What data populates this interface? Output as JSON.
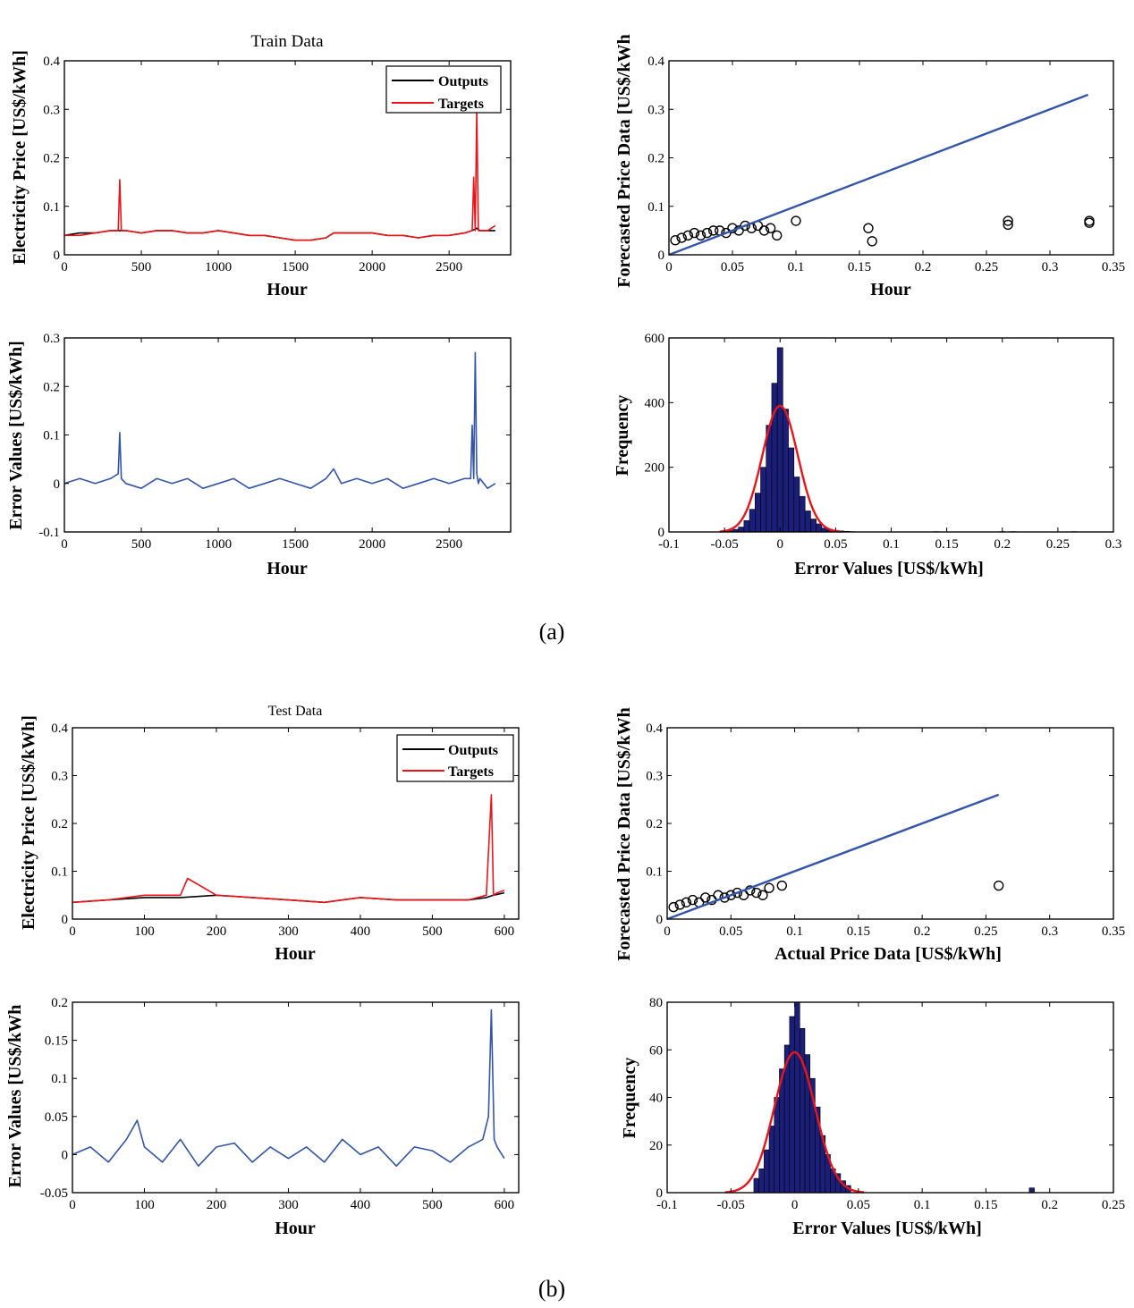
{
  "captions": {
    "a": "(a)",
    "b": "(b)"
  },
  "colors": {
    "outputs": "#000000",
    "targets": "#e8161b",
    "fit_line": "#3355a8",
    "error_line": "#3355a8",
    "hist_bar": "#1c1f7a",
    "normal_curve": "#e8161b"
  },
  "chart_data": [
    {
      "id": "a-train-series",
      "type": "line",
      "title": "Train Data",
      "xlabel": "Hour",
      "ylabel": "Electricity Price [US$/kWh]",
      "xlim": [
        0,
        2900
      ],
      "ylim": [
        0,
        0.4
      ],
      "xticks": [
        "0",
        "500",
        "1000",
        "1500",
        "2000",
        "2500"
      ],
      "yticks": [
        "0",
        "0.1",
        "0.2",
        "0.3",
        "0.4"
      ],
      "legend": "top-right",
      "series": [
        {
          "name": "Outputs",
          "kind": "line",
          "color": "#000000",
          "x": [
            0,
            100,
            200,
            300,
            350,
            400,
            500,
            600,
            700,
            800,
            900,
            1000,
            1100,
            1200,
            1300,
            1400,
            1500,
            1600,
            1700,
            1750,
            1800,
            1900,
            2000,
            2100,
            2200,
            2300,
            2400,
            2500,
            2600,
            2650,
            2680,
            2700,
            2750,
            2800
          ],
          "y": [
            0.04,
            0.045,
            0.045,
            0.05,
            0.05,
            0.05,
            0.045,
            0.05,
            0.05,
            0.045,
            0.045,
            0.05,
            0.045,
            0.04,
            0.04,
            0.035,
            0.03,
            0.03,
            0.035,
            0.045,
            0.045,
            0.045,
            0.045,
            0.04,
            0.04,
            0.035,
            0.04,
            0.04,
            0.045,
            0.05,
            0.055,
            0.05,
            0.05,
            0.05
          ]
        },
        {
          "name": "Targets",
          "kind": "line",
          "color": "#e8161b",
          "x": [
            0,
            100,
            200,
            300,
            350,
            360,
            370,
            400,
            500,
            600,
            700,
            800,
            900,
            1000,
            1100,
            1200,
            1300,
            1400,
            1500,
            1600,
            1700,
            1750,
            1800,
            1900,
            2000,
            2100,
            2200,
            2300,
            2400,
            2500,
            2600,
            2650,
            2660,
            2670,
            2680,
            2690,
            2700,
            2750,
            2800
          ],
          "y": [
            0.04,
            0.04,
            0.045,
            0.05,
            0.05,
            0.155,
            0.05,
            0.05,
            0.045,
            0.05,
            0.05,
            0.045,
            0.045,
            0.05,
            0.045,
            0.04,
            0.04,
            0.035,
            0.03,
            0.03,
            0.035,
            0.045,
            0.045,
            0.045,
            0.045,
            0.04,
            0.04,
            0.035,
            0.04,
            0.04,
            0.045,
            0.05,
            0.16,
            0.05,
            0.3,
            0.05,
            0.05,
            0.05,
            0.06
          ]
        }
      ]
    },
    {
      "id": "a-train-regression",
      "type": "scatter",
      "xlabel": "Hour",
      "ylabel": "Forecasted Price Data [US$/kWh",
      "xlim": [
        0,
        0.35
      ],
      "ylim": [
        0,
        0.4
      ],
      "xticks": [
        "0",
        "0.05",
        "0.1",
        "0.15",
        "0.2",
        "0.25",
        "0.3",
        "0.35"
      ],
      "yticks": [
        "0",
        "0.1",
        "0.2",
        "0.3",
        "0.4"
      ],
      "fit_line": {
        "x": [
          0,
          0.33
        ],
        "y": [
          0,
          0.33
        ]
      },
      "points": {
        "x": [
          0.005,
          0.01,
          0.015,
          0.02,
          0.025,
          0.03,
          0.035,
          0.04,
          0.045,
          0.05,
          0.055,
          0.06,
          0.065,
          0.07,
          0.075,
          0.08,
          0.085,
          0.1,
          0.157,
          0.16,
          0.267,
          0.267,
          0.331,
          0.331
        ],
        "y": [
          0.03,
          0.035,
          0.04,
          0.045,
          0.04,
          0.045,
          0.05,
          0.05,
          0.045,
          0.055,
          0.05,
          0.06,
          0.055,
          0.06,
          0.05,
          0.055,
          0.04,
          0.07,
          0.055,
          0.028,
          0.07,
          0.062,
          0.07,
          0.066
        ]
      }
    },
    {
      "id": "a-train-error",
      "type": "line",
      "xlabel": "Hour",
      "ylabel": "Error Values [US$/kWh]",
      "xlim": [
        0,
        2900
      ],
      "ylim": [
        -0.1,
        0.3
      ],
      "xticks": [
        "0",
        "500",
        "1000",
        "1500",
        "2000",
        "2500"
      ],
      "yticks": [
        "-0.1",
        "0",
        "0.1",
        "0.2",
        "0.3"
      ],
      "series": [
        {
          "kind": "line",
          "color": "#3355a8",
          "x": [
            0,
            100,
            200,
            300,
            350,
            360,
            370,
            400,
            500,
            600,
            700,
            800,
            900,
            1000,
            1100,
            1200,
            1300,
            1400,
            1500,
            1600,
            1700,
            1750,
            1800,
            1900,
            2000,
            2100,
            2200,
            2300,
            2400,
            2500,
            2600,
            2640,
            2650,
            2660,
            2670,
            2680,
            2690,
            2700,
            2750,
            2800
          ],
          "y": [
            0,
            0.01,
            0,
            0.01,
            0.02,
            0.105,
            0.01,
            0,
            -0.01,
            0.01,
            0,
            0.01,
            -0.01,
            0,
            0.01,
            -0.01,
            0,
            0.01,
            0,
            -0.01,
            0.01,
            0.03,
            0,
            0.01,
            0,
            0.01,
            -0.01,
            0,
            0.01,
            0,
            0.01,
            0.01,
            0.12,
            0.01,
            0.27,
            0.02,
            0,
            0.01,
            -0.01,
            0
          ]
        }
      ]
    },
    {
      "id": "a-train-hist",
      "type": "bar",
      "xlabel": "Error Values [US$/kWh]",
      "ylabel": "Frequency",
      "xlim": [
        -0.1,
        0.3
      ],
      "ylim": [
        0,
        600
      ],
      "xticks": [
        "-0.1",
        "-0.05",
        "0",
        "0.05",
        "0.1",
        "0.15",
        "0.2",
        "0.25",
        "0.3"
      ],
      "yticks": [
        "0",
        "200",
        "400",
        "600"
      ],
      "bin_width": 0.005,
      "bin_centers": [
        -0.05,
        -0.045,
        -0.04,
        -0.035,
        -0.03,
        -0.025,
        -0.02,
        -0.015,
        -0.01,
        -0.005,
        0,
        0.005,
        0.01,
        0.015,
        0.02,
        0.025,
        0.03,
        0.035,
        0.04,
        0.045,
        0.05,
        0.055,
        0.06,
        0.065,
        0.14,
        0.2,
        0.21,
        0.265
      ],
      "counts": [
        2,
        4,
        8,
        15,
        35,
        70,
        120,
        200,
        330,
        460,
        570,
        380,
        260,
        170,
        110,
        65,
        40,
        25,
        12,
        8,
        5,
        3,
        2,
        1,
        1,
        1,
        1,
        1
      ],
      "normal_fit": {
        "mean": 0.0,
        "sd": 0.016,
        "peak": 390
      }
    },
    {
      "id": "b-test-series",
      "type": "line",
      "title": "Test Data",
      "xlabel": "Hour",
      "ylabel": "Electricity Price [US$/kWh]",
      "xlim": [
        0,
        620
      ],
      "ylim": [
        0,
        0.4
      ],
      "xticks": [
        "0",
        "100",
        "200",
        "300",
        "400",
        "500",
        "600"
      ],
      "yticks": [
        "0",
        "0.1",
        "0.2",
        "0.3",
        "0.4"
      ],
      "legend": "top-right",
      "series": [
        {
          "name": "Outputs",
          "kind": "line",
          "color": "#000000",
          "x": [
            0,
            50,
            100,
            150,
            200,
            250,
            300,
            350,
            400,
            450,
            500,
            550,
            575,
            585,
            600
          ],
          "y": [
            0.035,
            0.04,
            0.045,
            0.045,
            0.05,
            0.045,
            0.04,
            0.035,
            0.045,
            0.04,
            0.04,
            0.04,
            0.045,
            0.05,
            0.055
          ]
        },
        {
          "name": "Targets",
          "kind": "line",
          "color": "#e8161b",
          "x": [
            0,
            50,
            100,
            150,
            160,
            200,
            250,
            300,
            350,
            400,
            450,
            500,
            550,
            575,
            582,
            585,
            590,
            600
          ],
          "y": [
            0.035,
            0.04,
            0.05,
            0.05,
            0.085,
            0.05,
            0.045,
            0.04,
            0.035,
            0.045,
            0.04,
            0.04,
            0.04,
            0.05,
            0.26,
            0.05,
            0.055,
            0.06
          ]
        }
      ]
    },
    {
      "id": "b-test-regression",
      "type": "scatter",
      "xlabel": "Actual Price Data [US$/kWh]",
      "ylabel": "Forecasted  Price Data [US$/kWh",
      "xlim": [
        0,
        0.35
      ],
      "ylim": [
        0,
        0.4
      ],
      "xticks": [
        "0",
        "0.05",
        "0.1",
        "0.15",
        "0.2",
        "0.25",
        "0.3",
        "0.35"
      ],
      "yticks": [
        "0",
        "0.1",
        "0.2",
        "0.3",
        "0.4"
      ],
      "fit_line": {
        "x": [
          0,
          0.26
        ],
        "y": [
          0,
          0.26
        ]
      },
      "points": {
        "x": [
          0.005,
          0.01,
          0.015,
          0.02,
          0.025,
          0.03,
          0.035,
          0.04,
          0.045,
          0.05,
          0.055,
          0.06,
          0.065,
          0.07,
          0.075,
          0.08,
          0.09,
          0.26
        ],
        "y": [
          0.025,
          0.03,
          0.035,
          0.04,
          0.035,
          0.045,
          0.04,
          0.05,
          0.045,
          0.05,
          0.055,
          0.05,
          0.06,
          0.055,
          0.05,
          0.065,
          0.07,
          0.07
        ]
      }
    },
    {
      "id": "b-test-error",
      "type": "line",
      "xlabel": "Hour",
      "ylabel": "Error Values [US$/kWh",
      "xlim": [
        0,
        620
      ],
      "ylim": [
        -0.05,
        0.2
      ],
      "xticks": [
        "0",
        "100",
        "200",
        "300",
        "400",
        "500",
        "600"
      ],
      "yticks": [
        "-0.05",
        "0",
        "0.05",
        "0.1",
        "0.15",
        "0.2"
      ],
      "series": [
        {
          "kind": "line",
          "color": "#3355a8",
          "x": [
            0,
            25,
            50,
            75,
            90,
            100,
            125,
            150,
            175,
            200,
            225,
            250,
            275,
            300,
            325,
            350,
            375,
            400,
            425,
            450,
            475,
            500,
            525,
            550,
            570,
            578,
            582,
            586,
            590,
            600
          ],
          "y": [
            0,
            0.01,
            -0.01,
            0.02,
            0.045,
            0.01,
            -0.01,
            0.02,
            -0.015,
            0.01,
            0.015,
            -0.01,
            0.01,
            -0.005,
            0.01,
            -0.01,
            0.02,
            0,
            0.01,
            -0.015,
            0.01,
            0.005,
            -0.01,
            0.01,
            0.02,
            0.05,
            0.19,
            0.02,
            0.01,
            -0.005
          ]
        }
      ]
    },
    {
      "id": "b-test-hist",
      "type": "bar",
      "xlabel": "Error Values [US$/kWh]",
      "ylabel": "Frequency",
      "xlim": [
        -0.1,
        0.25
      ],
      "ylim": [
        0,
        80
      ],
      "xticks": [
        "-0.1",
        "-0.05",
        "0",
        "0.05",
        "0.1",
        "0.15",
        "0.2",
        "0.25"
      ],
      "yticks": [
        "0",
        "20",
        "40",
        "60",
        "80"
      ],
      "bin_width": 0.004,
      "bin_centers": [
        -0.03,
        -0.026,
        -0.022,
        -0.018,
        -0.014,
        -0.01,
        -0.006,
        -0.002,
        0.002,
        0.006,
        0.01,
        0.014,
        0.018,
        0.022,
        0.026,
        0.03,
        0.034,
        0.038,
        0.042,
        0.186
      ],
      "counts": [
        6,
        10,
        18,
        28,
        40,
        52,
        62,
        74,
        80,
        69,
        58,
        48,
        36,
        24,
        16,
        10,
        8,
        5,
        3,
        2
      ],
      "normal_fit": {
        "mean": 0.0,
        "sd": 0.016,
        "peak": 59
      }
    }
  ]
}
